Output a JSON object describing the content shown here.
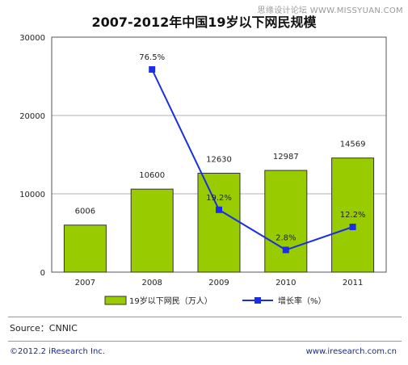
{
  "watermark": "思缘设计论坛 WWW.MISSYUAN.COM",
  "source_text": "Source：CNNIC",
  "copyright": "©2012.2 iResearch Inc.",
  "website": "www.iresearch.com.cn",
  "colors": {
    "bar_fill": "#99cc00",
    "bar_stroke": "#333333",
    "line": "#1a2ee6",
    "marker": "#1a2ee6",
    "grid": "#b0b0b0"
  },
  "chart_data": {
    "type": "bar",
    "title": "2007-2012年中国19岁以下网民规模",
    "categories": [
      "2007",
      "2008",
      "2009",
      "2010",
      "2011"
    ],
    "ylim": [
      0,
      30000
    ],
    "yticks": [
      0,
      10000,
      20000,
      30000
    ],
    "ytick_labels": [
      "0",
      "10000",
      "20000",
      "30000"
    ],
    "grid": true,
    "legend_position": "bottom",
    "series": [
      {
        "name": "19岁以下网民（万人）",
        "type": "bar",
        "values": [
          6006,
          10600,
          12630,
          12987,
          14569
        ],
        "labels": [
          "6006",
          "10600",
          "12630",
          "12987",
          "14569"
        ]
      },
      {
        "name": "增长率（%）",
        "type": "line",
        "values": [
          null,
          76.5,
          19.2,
          2.8,
          12.2
        ],
        "labels": [
          "",
          "76.5%",
          "19.2%",
          "2.8%",
          "12.2%"
        ]
      }
    ]
  }
}
